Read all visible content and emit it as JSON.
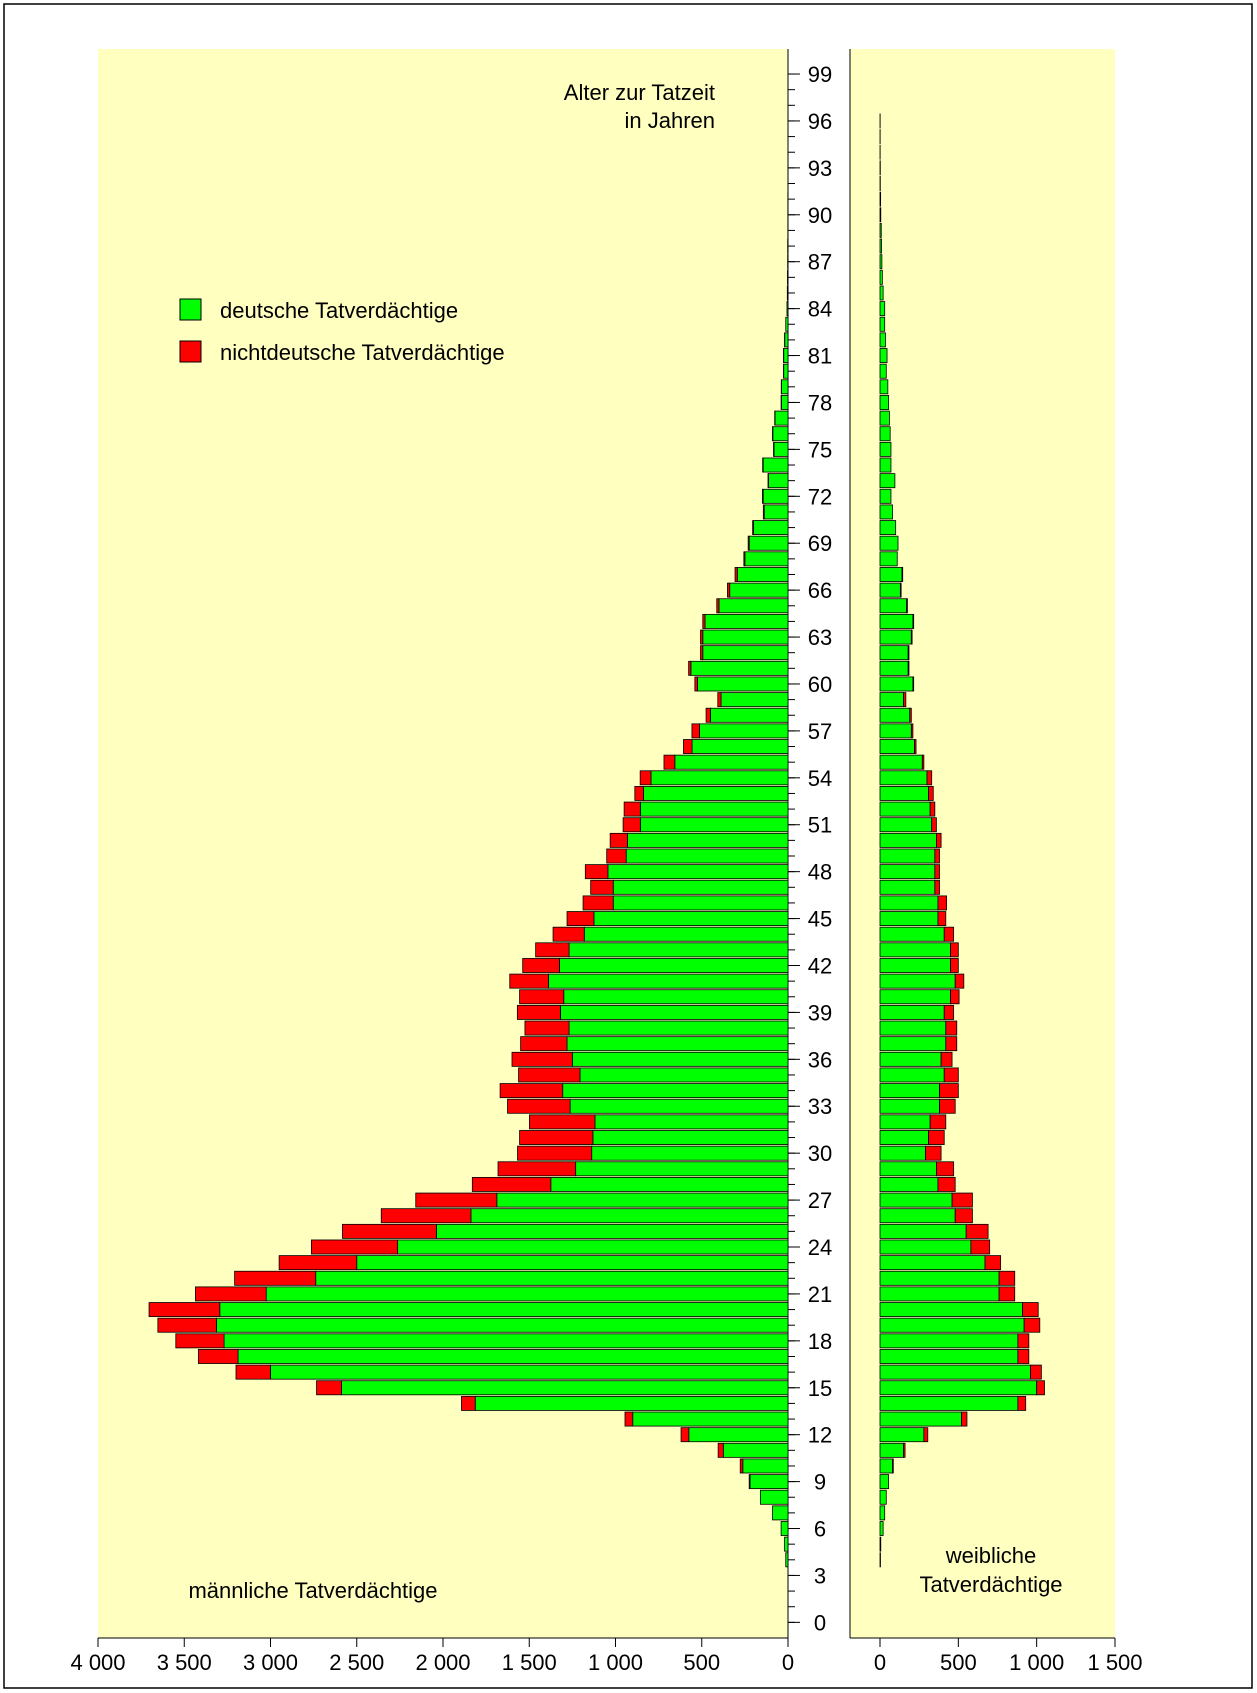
{
  "chart_data": {
    "type": "pyramid",
    "age_axis_label": [
      "Alter zur Tatzeit",
      "in Jahren"
    ],
    "ylim": [
      -1,
      100.6
    ],
    "yticks": [
      0,
      3,
      6,
      9,
      12,
      15,
      18,
      21,
      24,
      27,
      30,
      33,
      36,
      39,
      42,
      45,
      48,
      51,
      54,
      57,
      60,
      63,
      66,
      69,
      72,
      75,
      78,
      81,
      84,
      87,
      90,
      93,
      96,
      99
    ],
    "y": [
      0,
      1,
      2,
      3,
      4,
      5,
      6,
      7,
      8,
      9,
      10,
      11,
      12,
      13,
      14,
      15,
      16,
      17,
      18,
      19,
      20,
      21,
      22,
      23,
      24,
      25,
      26,
      27,
      28,
      29,
      30,
      31,
      32,
      33,
      34,
      35,
      36,
      37,
      38,
      39,
      40,
      41,
      42,
      43,
      44,
      45,
      46,
      47,
      48,
      49,
      50,
      51,
      52,
      53,
      54,
      55,
      56,
      57,
      58,
      59,
      60,
      61,
      62,
      63,
      64,
      65,
      66,
      67,
      68,
      69,
      70,
      71,
      72,
      73,
      74,
      75,
      76,
      77,
      78,
      79,
      80,
      81,
      82,
      83,
      84,
      85,
      86,
      87,
      88,
      89,
      90,
      91,
      92,
      93,
      94,
      95,
      96,
      97,
      98,
      99
    ],
    "panels": [
      {
        "key": "male",
        "label": [
          "männliche Tatverdächtige"
        ],
        "xlim": [
          0,
          4000
        ],
        "xticks": [
          {
            "value": 4000,
            "label": "4 000"
          },
          {
            "value": 3500,
            "label": "3 500"
          },
          {
            "value": 3000,
            "label": "3 000"
          },
          {
            "value": 2500,
            "label": "2 500"
          },
          {
            "value": 2000,
            "label": "2 000"
          },
          {
            "value": 1500,
            "label": "1 500"
          },
          {
            "value": 1000,
            "label": "1 000"
          },
          500,
          0
        ]
      },
      {
        "key": "female",
        "label": [
          "weibliche",
          "Tatverdächtige"
        ],
        "xlim": [
          0,
          1500
        ],
        "xticks": [
          0,
          500,
          {
            "value": 1000,
            "label": "1 000"
          },
          {
            "value": 1500,
            "label": "1 500"
          }
        ]
      }
    ],
    "series": [
      {
        "name": "deutsche Tatverdächtige",
        "color": "#00ff00",
        "male": [
          0,
          0,
          0,
          0,
          13,
          20,
          40,
          90,
          160,
          220,
          262,
          375,
          575,
          900,
          1813,
          2588,
          3000,
          3188,
          3269,
          3313,
          3294,
          3025,
          2738,
          2500,
          2263,
          2038,
          1838,
          1688,
          1375,
          1231,
          1138,
          1131,
          1119,
          1263,
          1306,
          1206,
          1250,
          1281,
          1269,
          1319,
          1300,
          1388,
          1325,
          1269,
          1181,
          1125,
          1013,
          1013,
          1044,
          938,
          931,
          856,
          856,
          838,
          794,
          656,
          556,
          513,
          450,
          388,
          525,
          563,
          494,
          494,
          481,
          400,
          338,
          294,
          250,
          225,
          200,
          138,
          144,
          113,
          144,
          81,
          88,
          75,
          38,
          38,
          25,
          25,
          19,
          13,
          6,
          4,
          3,
          2,
          2,
          1,
          1,
          1,
          0,
          0,
          0,
          0,
          0,
          0,
          0,
          0
        ],
        "female": [
          0,
          0,
          0,
          0,
          3,
          5,
          20,
          30,
          40,
          55,
          80,
          150,
          280,
          520,
          880,
          1000,
          960,
          880,
          880,
          920,
          910,
          760,
          760,
          670,
          580,
          550,
          480,
          460,
          370,
          360,
          290,
          310,
          320,
          380,
          380,
          410,
          390,
          420,
          420,
          410,
          450,
          480,
          450,
          450,
          410,
          370,
          370,
          350,
          350,
          350,
          360,
          330,
          320,
          310,
          300,
          270,
          220,
          200,
          190,
          150,
          210,
          180,
          180,
          200,
          210,
          170,
          130,
          140,
          110,
          115,
          100,
          80,
          70,
          95,
          70,
          70,
          65,
          60,
          55,
          50,
          40,
          45,
          35,
          30,
          30,
          20,
          15,
          12,
          10,
          8,
          5,
          4,
          2,
          2,
          1,
          1,
          1,
          0,
          0,
          0
        ]
      },
      {
        "name": "nichtdeutsche Tatverdächtige",
        "color": "#ff0000",
        "male": [
          0,
          0,
          0,
          0,
          0,
          0,
          0,
          0,
          0,
          5,
          15,
          30,
          45,
          45,
          80,
          145,
          200,
          230,
          280,
          340,
          410,
          410,
          470,
          450,
          500,
          545,
          520,
          470,
          455,
          450,
          430,
          425,
          380,
          363,
          363,
          356,
          350,
          269,
          256,
          250,
          256,
          225,
          213,
          194,
          181,
          156,
          175,
          131,
          131,
          113,
          100,
          100,
          94,
          50,
          63,
          63,
          50,
          44,
          25,
          19,
          15,
          13,
          13,
          13,
          13,
          13,
          13,
          13,
          6,
          6,
          5,
          5,
          4,
          3,
          3,
          3,
          2,
          2,
          2,
          1,
          1,
          1,
          1,
          0,
          0,
          0,
          0,
          0,
          0,
          0,
          0,
          0,
          0,
          0,
          0,
          0,
          0,
          0,
          0,
          0
        ],
        "female": [
          0,
          0,
          0,
          0,
          0,
          0,
          0,
          0,
          0,
          0,
          5,
          10,
          25,
          35,
          50,
          50,
          70,
          70,
          70,
          100,
          100,
          100,
          100,
          100,
          120,
          140,
          110,
          130,
          110,
          110,
          100,
          100,
          100,
          100,
          120,
          90,
          70,
          70,
          70,
          60,
          55,
          55,
          50,
          50,
          60,
          50,
          55,
          30,
          30,
          30,
          30,
          30,
          30,
          30,
          30,
          10,
          10,
          10,
          10,
          15,
          5,
          5,
          5,
          5,
          5,
          5,
          5,
          5,
          0,
          0,
          0,
          0,
          0,
          0,
          0,
          0,
          0,
          0,
          0,
          0,
          0,
          0,
          0,
          0,
          0,
          0,
          0,
          0,
          0,
          0,
          0,
          0,
          0,
          0,
          0,
          0,
          0,
          0,
          0,
          0
        ]
      }
    ]
  }
}
